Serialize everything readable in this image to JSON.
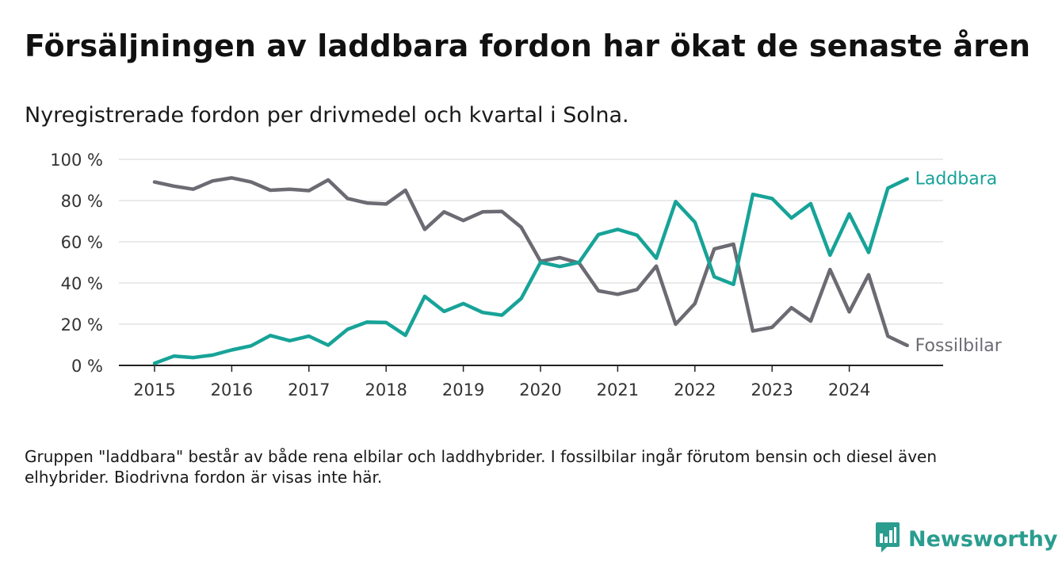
{
  "title": "Försäljningen av laddbara fordon har ökat de senaste åren",
  "subtitle": "Nyregistrerade fordon per drivmedel och kvartal i Solna.",
  "footnote": "Gruppen \"laddbara\" består av både rena elbilar och laddhybrider. I fossilbilar ingår förutom bensin och diesel även elhybrider. Biodrivna fordon är visas inte här.",
  "brand": {
    "name": "Newsworthy",
    "logo_icon": "newsworthy-logo-icon"
  },
  "colors": {
    "laddbara": "#17a398",
    "fossilbilar": "#6c6a72",
    "brand": "#2a9d8f",
    "grid": "#dddddd",
    "axis": "#222222"
  },
  "chart_data": {
    "type": "line",
    "title": "Försäljningen av laddbara fordon har ökat de senaste åren",
    "xlabel": "",
    "ylabel": "",
    "ylim": [
      0,
      100
    ],
    "y_ticks": [
      0,
      20,
      40,
      60,
      80,
      100
    ],
    "y_tick_labels": [
      "0 %",
      "20 %",
      "40 %",
      "60 %",
      "80 %",
      "100 %"
    ],
    "x_tick_labels": [
      "2015",
      "2016",
      "2017",
      "2018",
      "2019",
      "2020",
      "2021",
      "2022",
      "2023",
      "2024"
    ],
    "categories": [
      "2015 Q1",
      "2015 Q2",
      "2015 Q3",
      "2015 Q4",
      "2016 Q1",
      "2016 Q2",
      "2016 Q3",
      "2016 Q4",
      "2017 Q1",
      "2017 Q2",
      "2017 Q3",
      "2017 Q4",
      "2018 Q1",
      "2018 Q2",
      "2018 Q3",
      "2018 Q4",
      "2019 Q1",
      "2019 Q2",
      "2019 Q3",
      "2019 Q4",
      "2020 Q1",
      "2020 Q2",
      "2020 Q3",
      "2020 Q4",
      "2021 Q1",
      "2021 Q2",
      "2021 Q3",
      "2021 Q4",
      "2022 Q1",
      "2022 Q2",
      "2022 Q3",
      "2022 Q4",
      "2023 Q1",
      "2023 Q2",
      "2023 Q3",
      "2023 Q4",
      "2024 Q1",
      "2024 Q2",
      "2024 Q3",
      "2024 Q4"
    ],
    "grid": true,
    "series": [
      {
        "name": "Laddbara",
        "label": "Laddbara",
        "color": "#17a398",
        "values": [
          1,
          4.5,
          3.8,
          5,
          7.5,
          9.5,
          14.5,
          12,
          14.2,
          9.8,
          17.5,
          21,
          20.8,
          14.6,
          33.5,
          26.2,
          30,
          25.7,
          24.4,
          32.5,
          50,
          48,
          50,
          63.5,
          66,
          63.2,
          52,
          79.5,
          69.5,
          43,
          39.3,
          83,
          81,
          71.5,
          78.5,
          53.5,
          73.5,
          54.8,
          86,
          90.5
        ]
      },
      {
        "name": "Fossilbilar",
        "label": "Fossilbilar",
        "color": "#6c6a72",
        "values": [
          89,
          87,
          85.5,
          89.5,
          91,
          89,
          85,
          85.5,
          84.8,
          90,
          81,
          78.8,
          78.3,
          85,
          66,
          74.5,
          70.3,
          74.5,
          74.7,
          67,
          50.5,
          52.3,
          49.7,
          36.2,
          34.5,
          36.8,
          48.2,
          20,
          30,
          56.5,
          58.8,
          16.7,
          18.5,
          28,
          21.5,
          46.5,
          26,
          44,
          14.2,
          9.7
        ]
      }
    ]
  }
}
